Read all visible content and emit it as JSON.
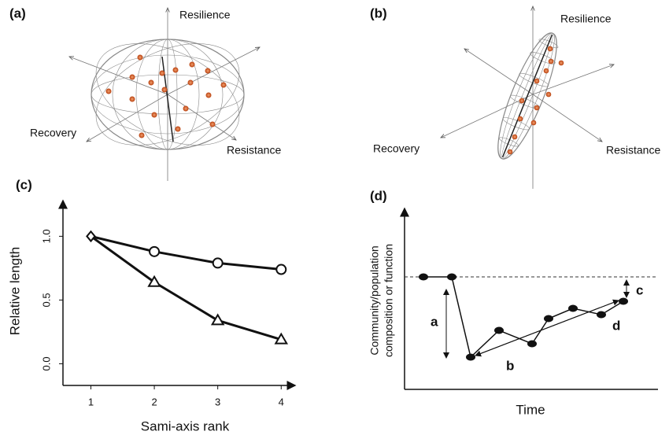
{
  "panel_a": {
    "label": "(a)",
    "axis_labels": [
      "Resilience",
      "Recovery",
      "Resistance"
    ]
  },
  "panel_b": {
    "label": "(b)",
    "axis_labels": [
      "Resilience",
      "Recovery",
      "Resistance"
    ]
  },
  "chart_data": {
    "type": "line",
    "label": "(c)",
    "y_label": "Relative length",
    "x_label": "Sami-axis rank",
    "x": [
      1,
      2,
      3,
      4
    ],
    "series": [
      {
        "marker": "circle",
        "color": "#111111",
        "values": [
          1.0,
          0.88,
          0.79,
          0.74
        ]
      },
      {
        "marker": "triangle",
        "color": "#111111",
        "values": [
          1.0,
          0.64,
          0.34,
          0.19
        ]
      }
    ],
    "xlim": [
      0.56,
      4.22
    ],
    "ylim": [
      -0.17,
      1.28
    ],
    "xticks": [
      1,
      2,
      3,
      4
    ],
    "yticks": [
      {
        "value": 0,
        "label": "0.0"
      },
      {
        "value": 0.5,
        "label": "0.5"
      },
      {
        "value": 1,
        "label": "1.0"
      }
    ]
  },
  "panel_d": {
    "label": "(d)",
    "y_label": [
      "Community/population",
      "composition or function"
    ],
    "x_label": "Time",
    "markers": [
      "a",
      "b",
      "c",
      "d"
    ]
  }
}
